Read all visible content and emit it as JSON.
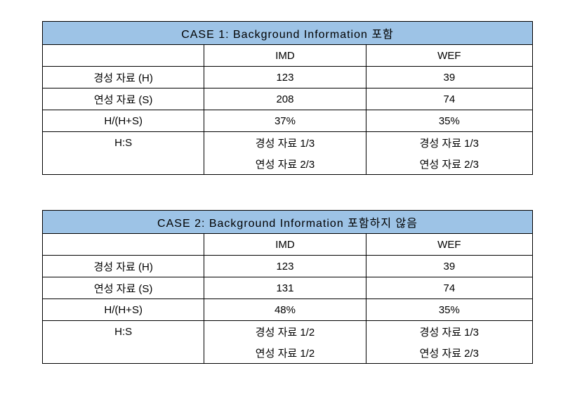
{
  "table1": {
    "title": "CASE 1: Background Information 포함",
    "col1_header": "",
    "col2_header": "IMD",
    "col3_header": "WEF",
    "rows": [
      {
        "label": "경성 자료 (H)",
        "imd": "123",
        "wef": "39"
      },
      {
        "label": "연성 자료 (S)",
        "imd": "208",
        "wef": "74"
      },
      {
        "label": "H/(H+S)",
        "imd": "37%",
        "wef": "35%"
      }
    ],
    "hs_label": "H:S",
    "hs_imd_top": "경성 자료 1/3",
    "hs_wef_top": "경성 자료 1/3",
    "hs_imd_bot": "연성 자료 2/3",
    "hs_wef_bot": "연성 자료 2/3"
  },
  "table2": {
    "title": "CASE 2: Background Information 포함하지 않음",
    "col1_header": "",
    "col2_header": "IMD",
    "col3_header": "WEF",
    "rows": [
      {
        "label": "경성 자료 (H)",
        "imd": "123",
        "wef": "39"
      },
      {
        "label": "연성 자료 (S)",
        "imd": "131",
        "wef": "74"
      },
      {
        "label": "H/(H+S)",
        "imd": "48%",
        "wef": "35%"
      }
    ],
    "hs_label": "H:S",
    "hs_imd_top": "경성 자료 1/2",
    "hs_wef_top": "경성 자료 1/3",
    "hs_imd_bot": "연성 자료 1/2",
    "hs_wef_bot": "연성 자료 2/3"
  },
  "colors": {
    "header_bg": "#9dc3e6",
    "border": "#000000",
    "background": "#ffffff",
    "text": "#000000"
  },
  "fonts": {
    "body_size": 15,
    "header_size": 16,
    "family": "Malgun Gothic"
  }
}
